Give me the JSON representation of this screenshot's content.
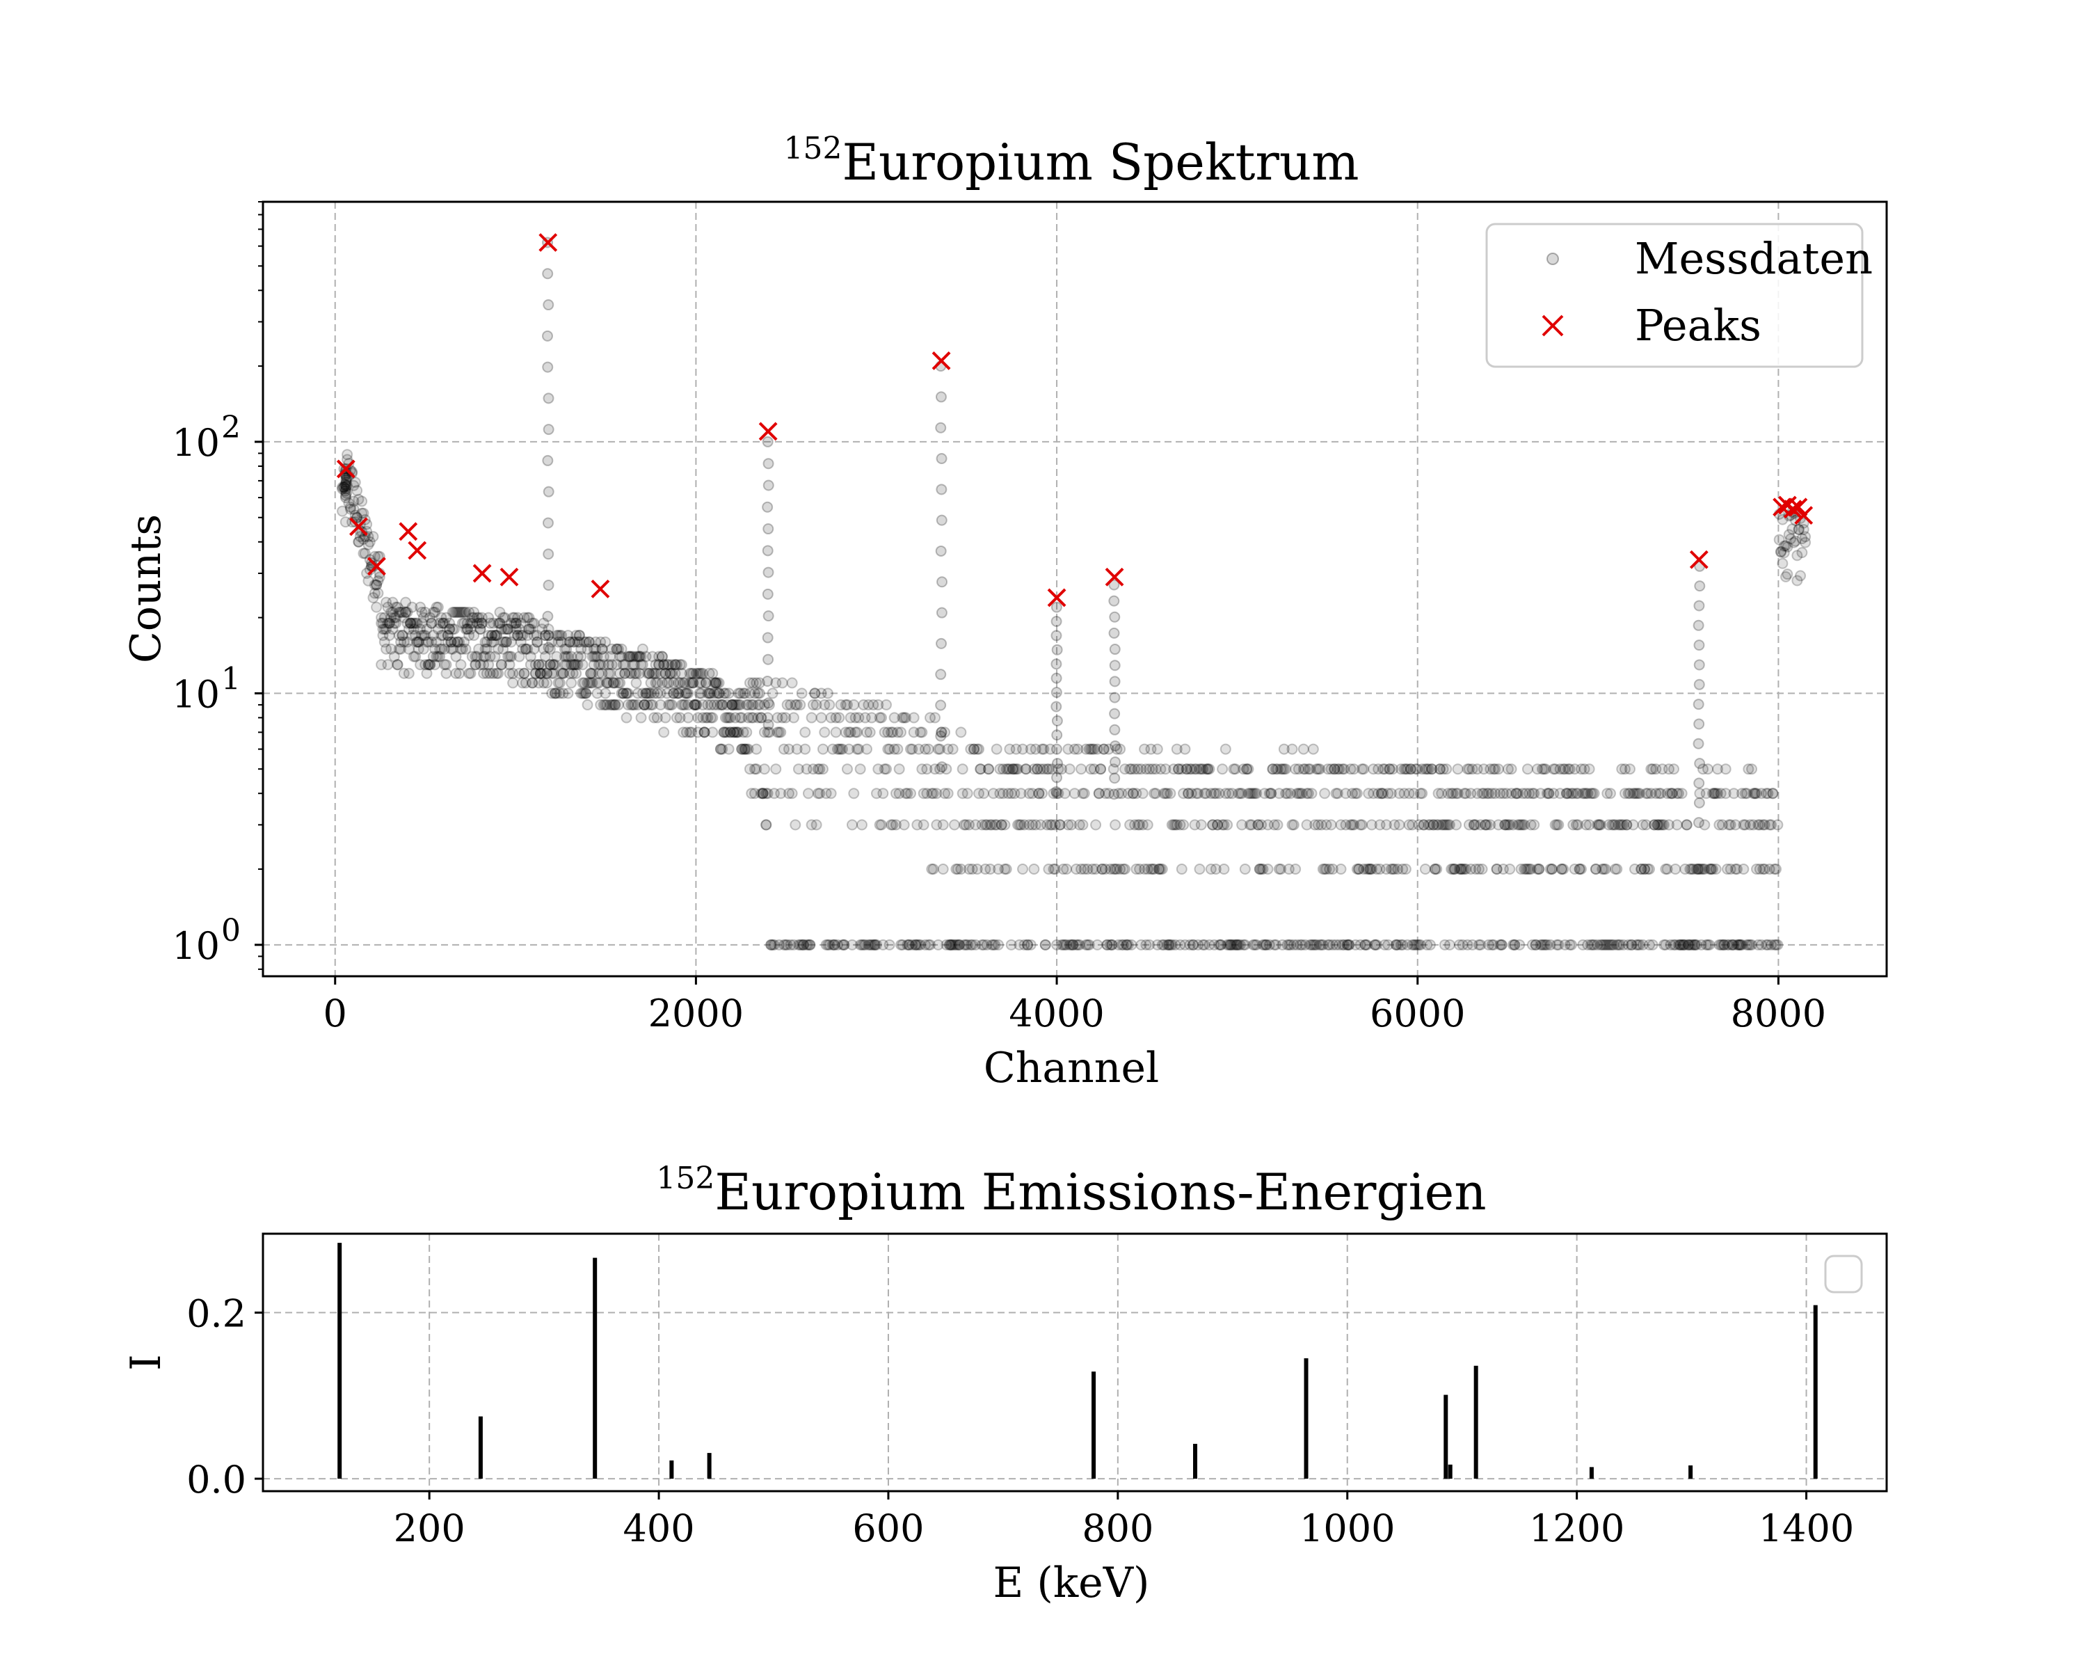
{
  "chart_data": [
    {
      "type": "scatter",
      "title_sup": "152",
      "title_main": "Europium Spektrum",
      "xlabel": "Channel",
      "ylabel": "Counts",
      "yscale": "log",
      "xlim": [
        -400,
        8600
      ],
      "ylim": [
        0.75,
        900
      ],
      "xticks": [
        0,
        2000,
        4000,
        6000,
        8000
      ],
      "xtick_labels": [
        "0",
        "2000",
        "4000",
        "6000",
        "8000"
      ],
      "yticks": [
        1,
        10,
        100
      ],
      "ytick_base": "10",
      "ytick_exps": [
        "0",
        "1",
        "2"
      ],
      "grid": true,
      "legend_position": "upper right",
      "legend": [
        "Messdaten",
        "Peaks"
      ],
      "series": [
        {
          "name": "Messdaten",
          "marker": "circle",
          "color": "#000000",
          "alpha": 0.15,
          "description_note": "approximate digitized cloud of channel counts"
        },
        {
          "name": "Peaks",
          "marker": "x",
          "color": "#e00000",
          "x": [
            60,
            130,
            230,
            405,
            455,
            815,
            965,
            1470,
            1180,
            2400,
            3360,
            4000,
            4320,
            7560,
            8020,
            8050,
            8080,
            8110,
            8140
          ],
          "y": [
            78,
            46,
            32,
            44,
            37,
            30,
            29,
            26,
            620,
            110,
            210,
            24,
            29,
            34,
            55,
            56,
            54,
            55,
            51
          ]
        }
      ],
      "peak_lines": [
        {
          "x": 60,
          "y": 60
        },
        {
          "x": 1180,
          "y": 620
        },
        {
          "x": 2400,
          "y": 100
        },
        {
          "x": 3360,
          "y": 200
        },
        {
          "x": 4000,
          "y": 22
        },
        {
          "x": 4320,
          "y": 27
        },
        {
          "x": 7560,
          "y": 32
        }
      ]
    },
    {
      "type": "bar",
      "title_sup": "152",
      "title_main": "Europium Emissions-Energien",
      "xlabel": "E (keV)",
      "ylabel": "I",
      "xlim": [
        55,
        1470
      ],
      "ylim": [
        -0.015,
        0.295
      ],
      "xticks": [
        200,
        400,
        600,
        800,
        1000,
        1200,
        1400
      ],
      "xtick_labels": [
        "200",
        "400",
        "600",
        "800",
        "1000",
        "1200",
        "1400"
      ],
      "yticks": [
        0.0,
        0.2
      ],
      "ytick_labels": [
        "0.0",
        "0.2"
      ],
      "grid": true,
      "legend_position": "upper right",
      "x": [
        121.8,
        244.7,
        344.3,
        411.1,
        444.0,
        778.9,
        867.4,
        964.1,
        1085.8,
        1089.7,
        1112.1,
        1212.9,
        1299.1,
        1408.0
      ],
      "values": [
        0.284,
        0.075,
        0.266,
        0.022,
        0.031,
        0.129,
        0.042,
        0.145,
        0.101,
        0.017,
        0.136,
        0.014,
        0.016,
        0.209
      ]
    }
  ],
  "colors": {
    "data_points": "#000000",
    "peaks": "#e00000",
    "grid": "#b0b0b0",
    "legend_border": "#cccccc"
  }
}
